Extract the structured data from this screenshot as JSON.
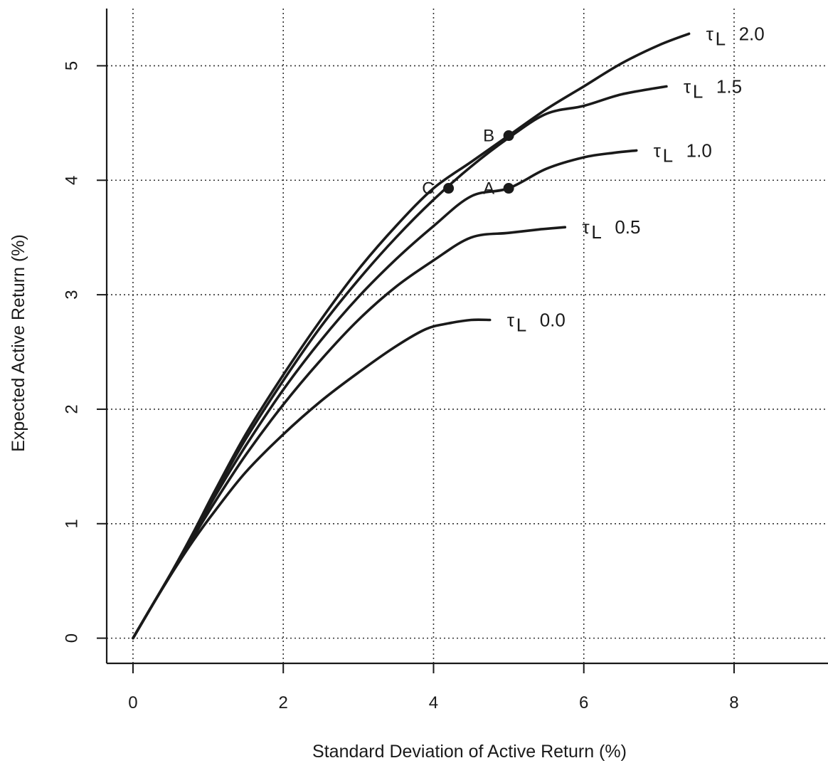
{
  "chart_data": {
    "type": "line",
    "title": "",
    "xlabel": "Standard Deviation of Active Return (%)",
    "ylabel": "Expected Active Return (%)",
    "xlim": [
      -0.35,
      9.25
    ],
    "ylim": [
      -0.22,
      5.5
    ],
    "xticks": [
      0,
      2,
      4,
      6,
      8
    ],
    "yticks": [
      0,
      1,
      2,
      3,
      4,
      5
    ],
    "grid": true,
    "legend": "none",
    "line_color": "#1a1a1a",
    "series": [
      {
        "name": "τL 0.0",
        "label_symbol": "τ",
        "label_subscript": "L",
        "label_value": "0.0",
        "x": [
          0,
          0.25,
          0.5,
          0.8,
          1.1,
          1.5,
          2.0,
          2.5,
          3.0,
          3.5,
          3.9,
          4.2,
          4.5,
          4.75
        ],
        "y": [
          0,
          0.28,
          0.55,
          0.85,
          1.12,
          1.45,
          1.78,
          2.07,
          2.32,
          2.55,
          2.7,
          2.75,
          2.78,
          2.78
        ]
      },
      {
        "name": "τL 0.5",
        "label_symbol": "τ",
        "label_subscript": "L",
        "label_value": "0.5",
        "x": [
          0,
          0.25,
          0.5,
          0.8,
          1.1,
          1.5,
          2.0,
          2.5,
          3.0,
          3.5,
          4.0,
          4.5,
          5.0,
          5.4,
          5.75
        ],
        "y": [
          0,
          0.28,
          0.55,
          0.88,
          1.2,
          1.6,
          2.04,
          2.43,
          2.78,
          3.07,
          3.3,
          3.5,
          3.54,
          3.57,
          3.59
        ]
      },
      {
        "name": "τL 1.0",
        "label_symbol": "τ",
        "label_subscript": "L",
        "label_value": "1.0",
        "x": [
          0,
          0.25,
          0.5,
          0.8,
          1.1,
          1.5,
          2.0,
          2.5,
          3.0,
          3.5,
          4.0,
          4.5,
          5.0,
          5.5,
          6.0,
          6.4,
          6.7
        ],
        "y": [
          0,
          0.28,
          0.56,
          0.9,
          1.25,
          1.68,
          2.17,
          2.6,
          2.98,
          3.31,
          3.6,
          3.86,
          3.93,
          4.1,
          4.2,
          4.24,
          4.26
        ]
      },
      {
        "name": "τL 1.5",
        "label_symbol": "τ",
        "label_subscript": "L",
        "label_value": "1.5",
        "x": [
          0,
          0.25,
          0.5,
          0.8,
          1.1,
          1.5,
          2.0,
          2.5,
          3.0,
          3.5,
          4.0,
          4.5,
          5.0,
          5.5,
          6.0,
          6.5,
          7.1
        ],
        "y": [
          0,
          0.28,
          0.56,
          0.91,
          1.28,
          1.74,
          2.25,
          2.72,
          3.13,
          3.5,
          3.83,
          4.12,
          4.37,
          4.58,
          4.65,
          4.75,
          4.82
        ]
      },
      {
        "name": "τL 2.0",
        "label_symbol": "τ",
        "label_subscript": "L",
        "label_value": "2.0",
        "x": [
          0,
          0.25,
          0.5,
          0.8,
          1.1,
          1.5,
          2.0,
          2.5,
          3.0,
          3.5,
          4.0,
          4.5,
          5.0,
          5.5,
          6.0,
          6.5,
          7.0,
          7.4
        ],
        "y": [
          0,
          0.28,
          0.56,
          0.92,
          1.3,
          1.78,
          2.3,
          2.78,
          3.22,
          3.6,
          3.93,
          4.16,
          4.39,
          4.62,
          4.82,
          5.02,
          5.18,
          5.28
        ]
      }
    ],
    "points": [
      {
        "label": "A",
        "x": 5.0,
        "y": 3.93
      },
      {
        "label": "B",
        "x": 5.0,
        "y": 4.39
      },
      {
        "label": "C",
        "x": 4.2,
        "y": 3.93
      }
    ]
  }
}
